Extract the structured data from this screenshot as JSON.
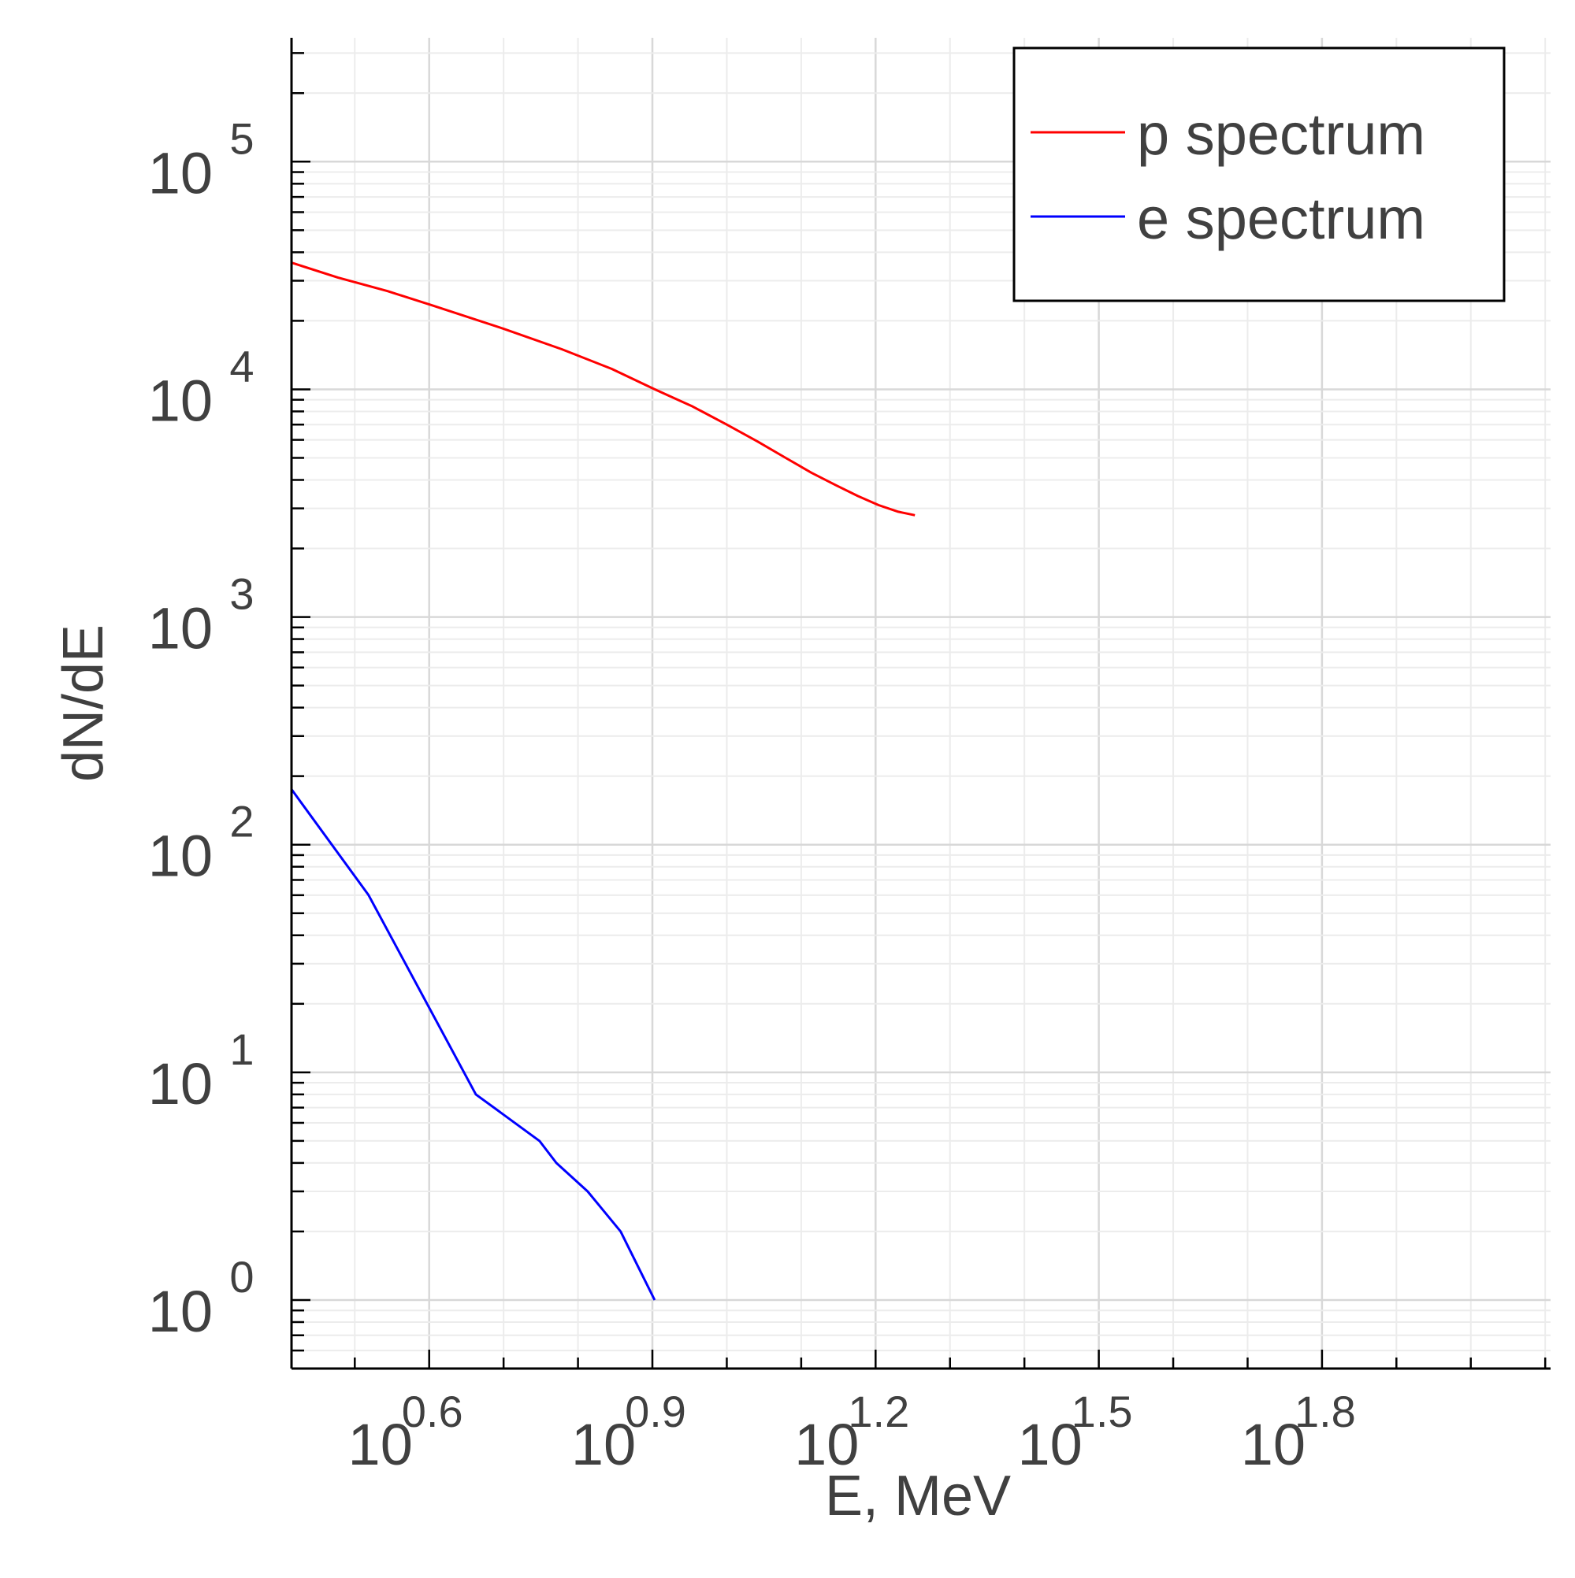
{
  "chart_data": {
    "type": "line",
    "title": "",
    "xlabel": "E, MeV",
    "ylabel": "dN/dE",
    "x_scale": "log10",
    "y_scale": "log10",
    "xlim": [
      2.6,
      128
    ],
    "ylim": [
      0.5,
      350000.0
    ],
    "grid": true,
    "legend_position": "top-right",
    "x_ticks": [
      {
        "base": "10",
        "exp": "0.6",
        "value": 3.981
      },
      {
        "base": "10",
        "exp": "0.9",
        "value": 7.943
      },
      {
        "base": "10",
        "exp": "1.2",
        "value": 15.849
      },
      {
        "base": "10",
        "exp": "1.5",
        "value": 31.623
      },
      {
        "base": "10",
        "exp": "1.8",
        "value": 63.096
      }
    ],
    "y_ticks": [
      {
        "base": "10",
        "exp": "0",
        "value": 1
      },
      {
        "base": "10",
        "exp": "1",
        "value": 10
      },
      {
        "base": "10",
        "exp": "2",
        "value": 100
      },
      {
        "base": "10",
        "exp": "3",
        "value": 1000
      },
      {
        "base": "10",
        "exp": "4",
        "value": 10000
      },
      {
        "base": "10",
        "exp": "5",
        "value": 100000
      }
    ],
    "series": [
      {
        "name": "p spectrum",
        "color": "#ff0000",
        "x": [
          2.6,
          3.0,
          3.5,
          4.0,
          5.0,
          6.0,
          7.0,
          8.0,
          9.0,
          10.0,
          11.0,
          12.0,
          13.0,
          14.0,
          15.0,
          16.0,
          17.0,
          17.9
        ],
        "y": [
          36000,
          31000,
          27000,
          23500,
          18500,
          15000,
          12300,
          10000,
          8400,
          7000,
          5900,
          5000,
          4300,
          3800,
          3400,
          3100,
          2900,
          2800
        ]
      },
      {
        "name": "e spectrum",
        "color": "#0000ff",
        "x": [
          2.6,
          3.3,
          4.6,
          5.6,
          5.9,
          6.5,
          7.2,
          7.6,
          8.0
        ],
        "y": [
          175,
          60,
          8,
          5,
          4,
          3,
          2,
          1.4,
          1
        ]
      }
    ]
  }
}
